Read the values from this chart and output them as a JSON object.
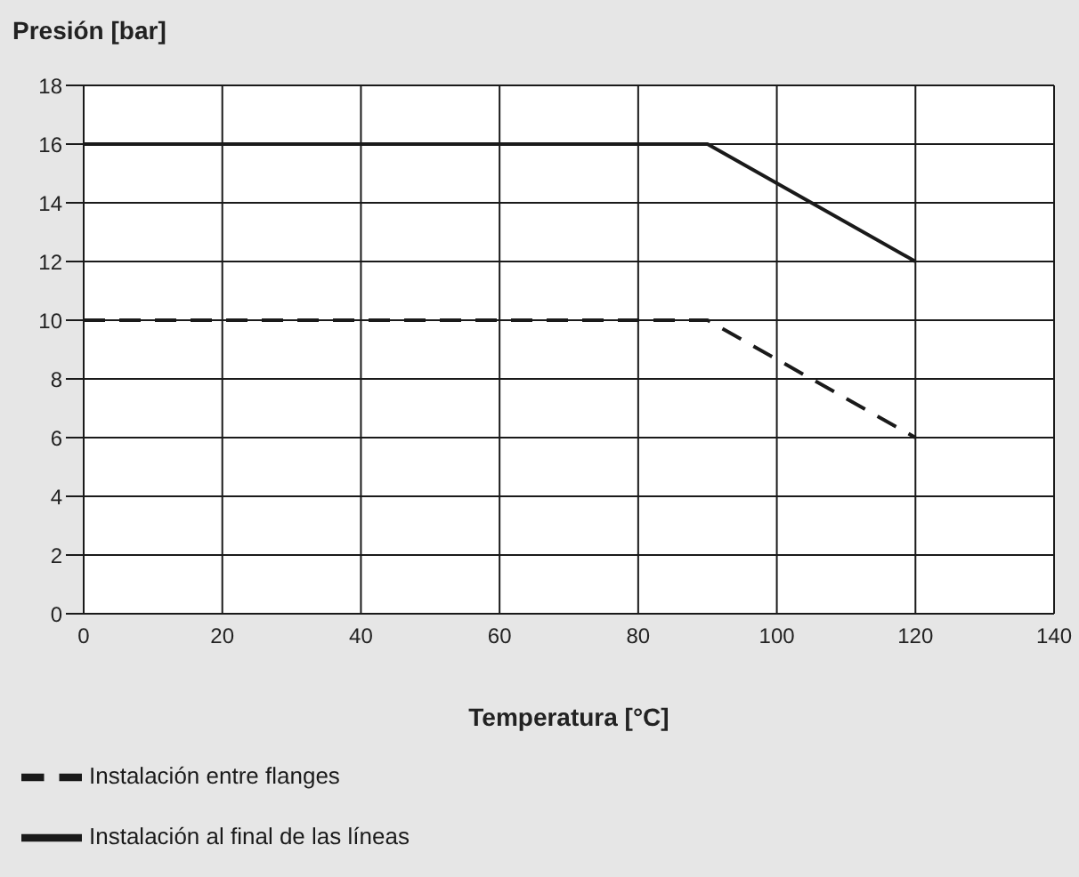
{
  "chart_data": {
    "type": "line",
    "xlabel": "Temperatura [°C]",
    "ylabel": "Presión [bar]",
    "xlim": [
      0,
      140
    ],
    "xticks": [
      0,
      20,
      40,
      60,
      80,
      100,
      120,
      140
    ],
    "ylim": [
      0,
      18
    ],
    "yticks": [
      0,
      2,
      4,
      6,
      8,
      10,
      12,
      14,
      16,
      18
    ],
    "grid": true,
    "legend": "bottom",
    "marker": "none",
    "series": [
      {
        "name": "Instalación entre flanges",
        "color": "#1a1a1a",
        "line_style": "dashed",
        "x": [
          0,
          90,
          120
        ],
        "values": [
          10,
          10,
          6
        ]
      },
      {
        "name": "Instalación al final de las líneas",
        "color": "#1a1a1a",
        "line_style": "solid",
        "x": [
          0,
          90,
          120
        ],
        "values": [
          16,
          16,
          12
        ]
      }
    ]
  }
}
